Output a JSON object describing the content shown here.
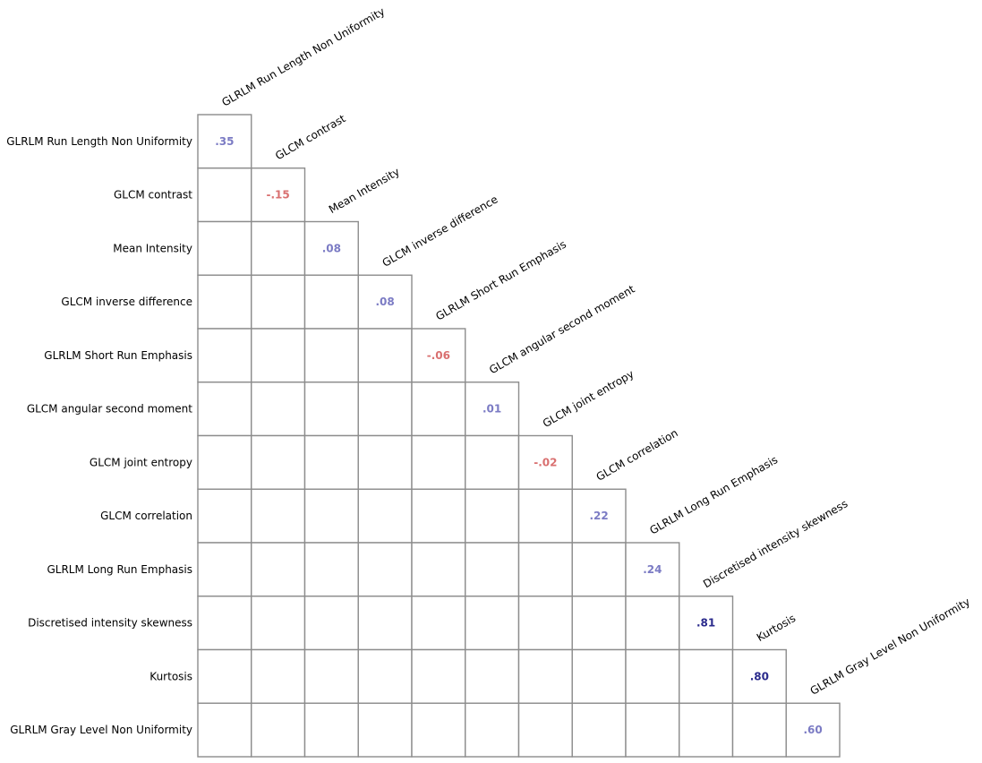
{
  "chart_data": {
    "type": "heatmap",
    "variables": [
      "GLRLM Run Length Non Uniformity",
      "GLCM contrast",
      "Mean Intensity",
      "GLCM inverse difference",
      "GLRLM Short Run Emphasis",
      "GLCM angular second moment",
      "GLCM joint entropy",
      "GLCM correlation",
      "GLRLM Long Run Emphasis",
      "Discretised intensity skewness",
      "Kurtosis",
      "GLRLM Gray Level Non Uniformity"
    ],
    "diagonal_values": [
      0.35,
      -0.15,
      0.08,
      0.08,
      -0.06,
      0.01,
      -0.02,
      0.22,
      0.24,
      0.81,
      0.8,
      0.6
    ],
    "diagonal_labels": [
      ".35",
      "-.15",
      ".08",
      ".08",
      "-.06",
      ".01",
      "-.02",
      ".22",
      ".24",
      ".81",
      ".80",
      ".60"
    ],
    "colors": {
      "positive_weak": "#7b7bc4",
      "positive_strong": "#2a2a8c",
      "negative": "#d97070",
      "grid": "#8c8c8c"
    }
  }
}
